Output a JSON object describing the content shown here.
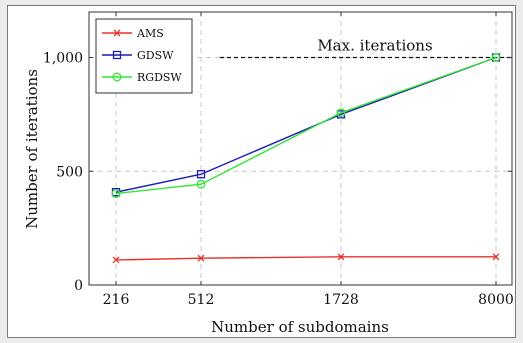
{
  "chart_data": {
    "type": "line",
    "title": "",
    "xlabel": "Number of subdomains",
    "ylabel": "Number of iterations",
    "x_scale": "categorical",
    "categories": [
      "216",
      "512",
      "1728",
      "8000"
    ],
    "ylim": [
      0,
      1200
    ],
    "yticks": [
      0,
      500,
      1000
    ],
    "ytick_labels": [
      "0",
      "500",
      "1,000"
    ],
    "grid": true,
    "legend_position": "top-left",
    "series": [
      {
        "name": "AMS",
        "color": "#e8322b",
        "marker": "x",
        "values": [
          110,
          118,
          124,
          124
        ]
      },
      {
        "name": "GDSW",
        "color": "#1d1db8",
        "marker": "square",
        "values": [
          408,
          487,
          750,
          1000
        ]
      },
      {
        "name": "RGDSW",
        "color": "#33e533",
        "marker": "circle",
        "values": [
          402,
          443,
          757,
          1000
        ]
      }
    ],
    "annotations": [
      {
        "type": "hline",
        "y": 1000,
        "style": "dashed",
        "color": "#111111",
        "label": "Max. iterations"
      }
    ]
  }
}
